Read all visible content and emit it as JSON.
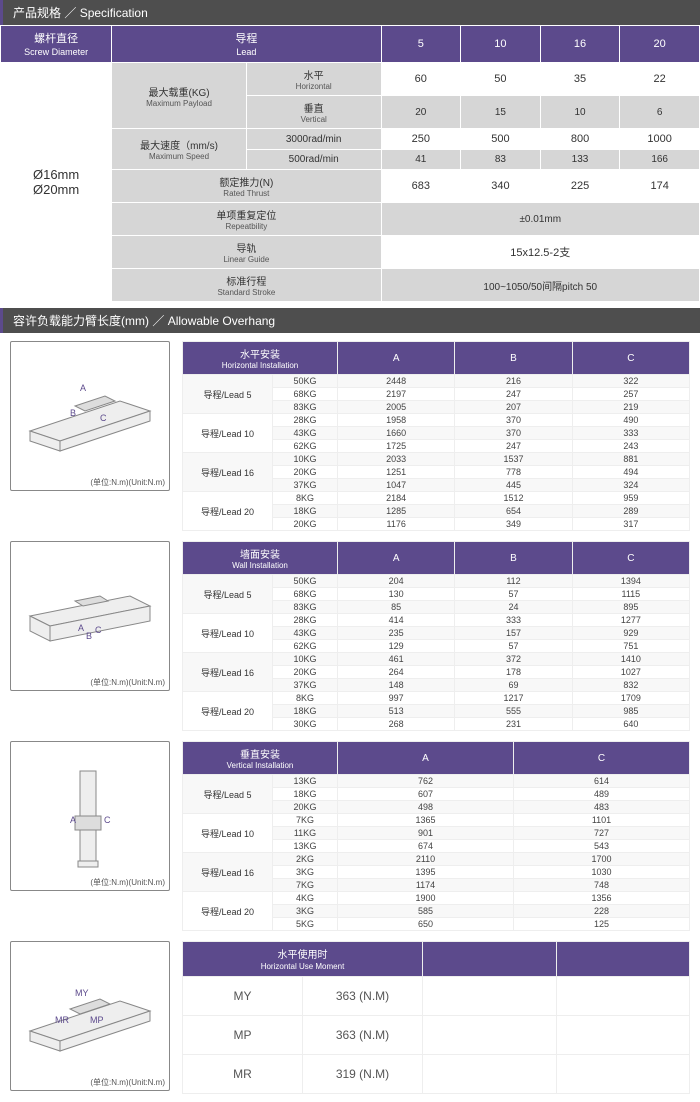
{
  "spec_header": {
    "cn": "产品规格",
    "en": "Specification"
  },
  "spec": {
    "screw_diameter": {
      "cn": "螺杆直径",
      "en": "Screw Diameter"
    },
    "lead": {
      "cn": "导程",
      "en": "Lead"
    },
    "lead_vals": [
      "5",
      "10",
      "16",
      "20"
    ],
    "screw_vals": [
      "Ø16mm",
      "Ø20mm"
    ],
    "rows": [
      {
        "group": {
          "cn": "最大载重(KG)",
          "en": "Maximum Payload"
        },
        "sub": [
          {
            "label": {
              "cn": "水平",
              "en": "Horizontal"
            },
            "vals": [
              "60",
              "50",
              "35",
              "22"
            ]
          },
          {
            "label": {
              "cn": "垂直",
              "en": "Vertical"
            },
            "vals": [
              "20",
              "15",
              "10",
              "6"
            ]
          }
        ]
      },
      {
        "group": {
          "cn": "最大速度（mm/s)",
          "en": "Maximum Speed"
        },
        "sub": [
          {
            "label": {
              "cn": "3000rad/min",
              "en": ""
            },
            "vals": [
              "250",
              "500",
              "800",
              "1000"
            ]
          },
          {
            "label": {
              "cn": "500rad/min",
              "en": ""
            },
            "vals": [
              "41",
              "83",
              "133",
              "166"
            ]
          }
        ]
      },
      {
        "label": {
          "cn": "额定推力(N)",
          "en": "Rated Thrust"
        },
        "vals": [
          "683",
          "340",
          "225",
          "174"
        ]
      },
      {
        "label": {
          "cn": "单项重复定位",
          "en": "Repeatbility"
        },
        "merged": "±0.01mm"
      },
      {
        "label": {
          "cn": "导轨",
          "en": "Linear Guide"
        },
        "merged": "15x12.5-2支"
      },
      {
        "label": {
          "cn": "标准行程",
          "en": "Standard Stroke"
        },
        "merged": "100~1050/50间隔pitch 50"
      }
    ]
  },
  "overhang_header": {
    "cn": "容许负载能力臂长度(mm)",
    "en": "Allowable Overhang"
  },
  "oh_caption": "(单位:N.m)(Unit:N.m)",
  "oh1": {
    "title": {
      "cn": "水平安装",
      "en": "Horizontal Installation"
    },
    "cols": [
      "A",
      "B",
      "C"
    ],
    "groups": [
      {
        "lead": "导程/Lead 5",
        "rows": [
          [
            "50KG",
            "2448",
            "216",
            "322"
          ],
          [
            "68KG",
            "2197",
            "247",
            "257"
          ],
          [
            "83KG",
            "2005",
            "207",
            "219"
          ]
        ]
      },
      {
        "lead": "导程/Lead 10",
        "rows": [
          [
            "28KG",
            "1958",
            "370",
            "490"
          ],
          [
            "43KG",
            "1660",
            "370",
            "333"
          ],
          [
            "62KG",
            "1725",
            "247",
            "243"
          ]
        ]
      },
      {
        "lead": "导程/Lead 16",
        "rows": [
          [
            "10KG",
            "2033",
            "1537",
            "881"
          ],
          [
            "20KG",
            "1251",
            "778",
            "494"
          ],
          [
            "37KG",
            "1047",
            "445",
            "324"
          ]
        ]
      },
      {
        "lead": "导程/Lead 20",
        "rows": [
          [
            "8KG",
            "2184",
            "1512",
            "959"
          ],
          [
            "18KG",
            "1285",
            "654",
            "289"
          ],
          [
            "20KG",
            "1176",
            "349",
            "317"
          ]
        ]
      }
    ]
  },
  "oh2": {
    "title": {
      "cn": "墙面安装",
      "en": "Wall Installation"
    },
    "cols": [
      "A",
      "B",
      "C"
    ],
    "groups": [
      {
        "lead": "导程/Lead 5",
        "rows": [
          [
            "50KG",
            "204",
            "112",
            "1394"
          ],
          [
            "68KG",
            "130",
            "57",
            "1115"
          ],
          [
            "83KG",
            "85",
            "24",
            "895"
          ]
        ]
      },
      {
        "lead": "导程/Lead 10",
        "rows": [
          [
            "28KG",
            "414",
            "333",
            "1277"
          ],
          [
            "43KG",
            "235",
            "157",
            "929"
          ],
          [
            "62KG",
            "129",
            "57",
            "751"
          ]
        ]
      },
      {
        "lead": "导程/Lead 16",
        "rows": [
          [
            "10KG",
            "461",
            "372",
            "1410"
          ],
          [
            "20KG",
            "264",
            "178",
            "1027"
          ],
          [
            "37KG",
            "148",
            "69",
            "832"
          ]
        ]
      },
      {
        "lead": "导程/Lead 20",
        "rows": [
          [
            "8KG",
            "997",
            "1217",
            "1709"
          ],
          [
            "18KG",
            "513",
            "555",
            "985"
          ],
          [
            "30KG",
            "268",
            "231",
            "640"
          ]
        ]
      }
    ]
  },
  "oh3": {
    "title": {
      "cn": "垂直安装",
      "en": "Vertical Installation"
    },
    "cols": [
      "A",
      "C"
    ],
    "groups": [
      {
        "lead": "导程/Lead 5",
        "rows": [
          [
            "13KG",
            "762",
            "614"
          ],
          [
            "18KG",
            "607",
            "489"
          ],
          [
            "20KG",
            "498",
            "483"
          ]
        ]
      },
      {
        "lead": "导程/Lead 10",
        "rows": [
          [
            "7KG",
            "1365",
            "1101"
          ],
          [
            "11KG",
            "901",
            "727"
          ],
          [
            "13KG",
            "674",
            "543"
          ]
        ]
      },
      {
        "lead": "导程/Lead 16",
        "rows": [
          [
            "2KG",
            "2110",
            "1700"
          ],
          [
            "3KG",
            "1395",
            "1030"
          ],
          [
            "7KG",
            "1174",
            "748"
          ]
        ]
      },
      {
        "lead": "导程/Lead 20",
        "rows": [
          [
            "4KG",
            "1900",
            "1356"
          ],
          [
            "3KG",
            "585",
            "228"
          ],
          [
            "5KG",
            "650",
            "125"
          ]
        ]
      }
    ]
  },
  "moment": {
    "title": {
      "cn": "水平使用时",
      "en": "Horizontal Use Moment"
    },
    "rows": [
      [
        "MY",
        "363 (N.M)"
      ],
      [
        "MP",
        "363 (N.M)"
      ],
      [
        "MR",
        "319 (N.M)"
      ]
    ]
  },
  "colors": {
    "purple": "#5c4a8c",
    "header_bg": "#4e4e4e",
    "grey": "#d6d6d6"
  }
}
